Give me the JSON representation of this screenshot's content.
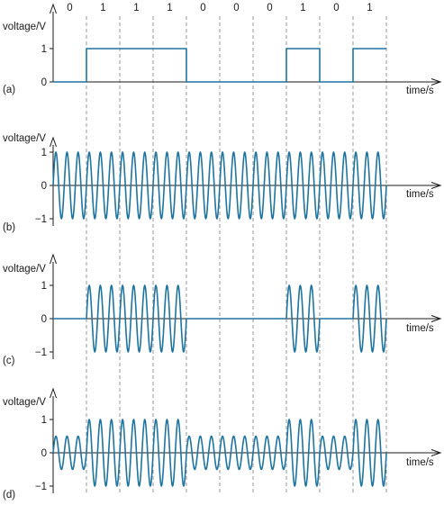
{
  "colors": {
    "trace": "#1f74a0",
    "axis": "#1a1a1a",
    "grid": "#8c8c8c"
  },
  "chart_data": {
    "type": "line",
    "bits": [
      "0",
      "1",
      "1",
      "1",
      "0",
      "0",
      "0",
      "1",
      "0",
      "1"
    ],
    "cycles_per_bit": 3,
    "x_range_bits": [
      0,
      10
    ],
    "grid": "dashed vertical lines at bit boundaries",
    "panels": [
      {
        "id": "a",
        "panel_label": "(a)",
        "signal": "digital",
        "ylabel": "voltage/V",
        "xlabel": "time/s",
        "yticks": [
          0,
          1
        ],
        "ytick_labels": [
          "0",
          "1"
        ],
        "ylim": [
          0,
          1
        ],
        "show_bits": true
      },
      {
        "id": "b",
        "panel_label": "(b)",
        "signal": "carrier",
        "ylabel": "voltage/V",
        "xlabel": "time/s",
        "yticks": [
          1,
          0,
          -1
        ],
        "ytick_labels": [
          "1",
          "0",
          "−1"
        ],
        "ylim": [
          -1,
          1
        ],
        "amplitude_bit1": 1,
        "amplitude_bit0": 1
      },
      {
        "id": "c",
        "panel_label": "(c)",
        "signal": "ask_on_off",
        "ylabel": "voltage/V",
        "xlabel": "time/s",
        "yticks": [
          1,
          0,
          -1
        ],
        "ytick_labels": [
          "1",
          "0",
          "−1"
        ],
        "ylim": [
          -1,
          1
        ],
        "amplitude_bit1": 1,
        "amplitude_bit0": 0
      },
      {
        "id": "d",
        "panel_label": "(d)",
        "signal": "ask_two_level",
        "ylabel": "voltage/V",
        "xlabel": "time/s",
        "yticks": [
          1,
          0,
          -1
        ],
        "ytick_labels": [
          "1",
          "0",
          "−1"
        ],
        "ylim": [
          -1,
          1
        ],
        "amplitude_bit1": 1,
        "amplitude_bit0": 0.5
      }
    ]
  }
}
